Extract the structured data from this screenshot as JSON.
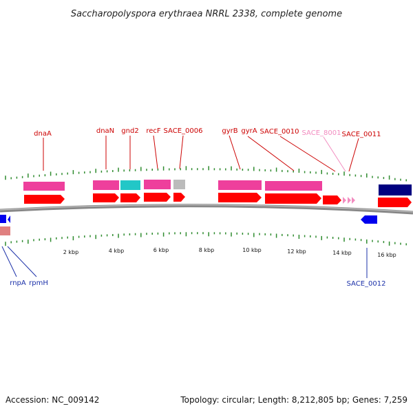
{
  "title": "Saccharopolyspora erythraea NRRL 2338, complete genome",
  "footer": {
    "accession": "Accession: NC_009142",
    "summary": "Topology: circular; Length: 8,212,805 bp; Genes: 7,259"
  },
  "colors": {
    "forward_label": "#cc0000",
    "forward_label_light": "#f28cc0",
    "reverse_label": "#1a2fa8",
    "cds_forward": "#ff0000",
    "cds_reverse": "#0000ee",
    "cds_reverse_dark": "#000080",
    "gene_magenta": "#ee3f9c",
    "gene_cyan": "#22c7c7",
    "gene_gray": "#bbbbbb",
    "gene_pink_faded": "#e08080",
    "tick": "#2e8b2e",
    "backbone": "#888888"
  },
  "scale": {
    "unit": "kbp",
    "labels": [
      "2 kbp",
      "4 kbp",
      "6 kbp",
      "8 kbp",
      "10 kbp",
      "12 kbp",
      "14 kbp",
      "16 kbp"
    ]
  },
  "forward_genes": [
    "dnaA",
    "dnaN",
    "gnd2",
    "recF",
    "SACE_0006",
    "gyrB",
    "gyrA",
    "SACE_0010",
    "SACE_8001",
    "SACE_0011"
  ],
  "reverse_genes": [
    "rnpA",
    "rpmH",
    "SACE_0012"
  ]
}
